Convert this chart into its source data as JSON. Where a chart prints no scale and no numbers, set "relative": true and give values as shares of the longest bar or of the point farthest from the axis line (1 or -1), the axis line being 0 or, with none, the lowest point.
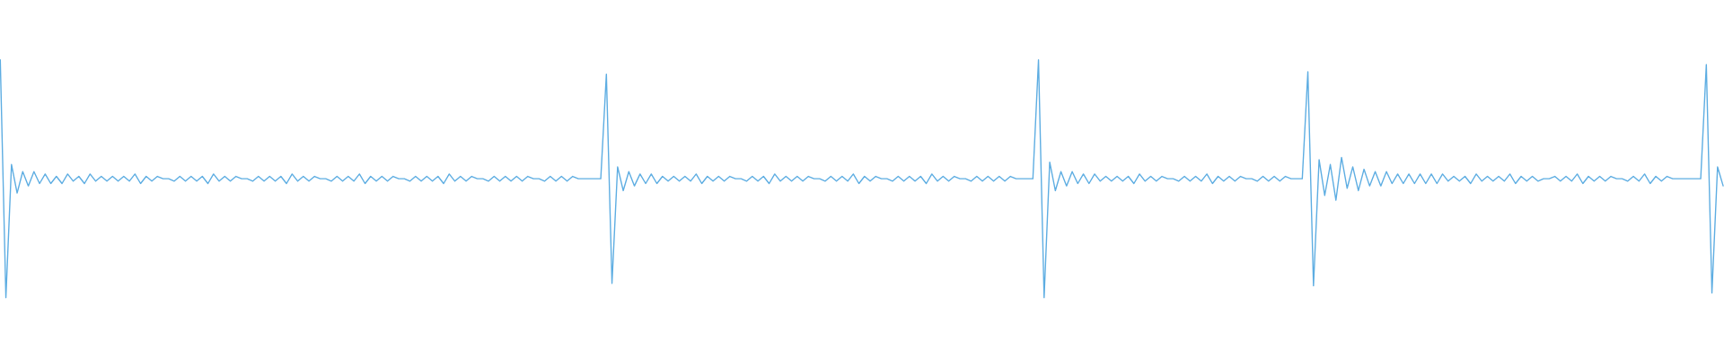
{
  "chart_data": {
    "type": "line",
    "relative": true,
    "categories": [
      null,
      null,
      null,
      null,
      null,
      null,
      null,
      null,
      null,
      null,
      null,
      null,
      null,
      null,
      null,
      null,
      null,
      null,
      null,
      null,
      null,
      null,
      null,
      null,
      null,
      null,
      null,
      null,
      null,
      null,
      null,
      null,
      null,
      null,
      null,
      null,
      null,
      null,
      null,
      null,
      null,
      null,
      null,
      null,
      null,
      null,
      null,
      null,
      null,
      null,
      null,
      null,
      null,
      null,
      null,
      null,
      null,
      null,
      null,
      null,
      null,
      null,
      null,
      null,
      null,
      null,
      null,
      null,
      null,
      null,
      null,
      null,
      null,
      null,
      null,
      null,
      null,
      null,
      null,
      null,
      null,
      null,
      null,
      null,
      null,
      null,
      null,
      null,
      null,
      null,
      null,
      null,
      null,
      null,
      null,
      null,
      null,
      null,
      null,
      null,
      null,
      null,
      null,
      null,
      null,
      null,
      null,
      null,
      null,
      null,
      null,
      null,
      null,
      null,
      null,
      null,
      null,
      null,
      null,
      null,
      null,
      null,
      null,
      null,
      null,
      null,
      null,
      null,
      null,
      null,
      null,
      null,
      null,
      null,
      null,
      null,
      null,
      null,
      null,
      null,
      null,
      null,
      null,
      null,
      null,
      null,
      null,
      null,
      null,
      null,
      null,
      null,
      null,
      null,
      null,
      null,
      null,
      null,
      null,
      null,
      null,
      null,
      null,
      null,
      null,
      null,
      null,
      null,
      null,
      null,
      null,
      null,
      null,
      null,
      null,
      null,
      null,
      null,
      null,
      null,
      null,
      null,
      null,
      null,
      null,
      null,
      null,
      null,
      null,
      null,
      null,
      null,
      null,
      null,
      null,
      null,
      null,
      null,
      null,
      null,
      null,
      null,
      null,
      null,
      null,
      null,
      null,
      null,
      null,
      null,
      null,
      null,
      null,
      null,
      null,
      null,
      null,
      null,
      null,
      null,
      null,
      null,
      null,
      null,
      null,
      null,
      null,
      null,
      null,
      null,
      null,
      null,
      null,
      null,
      null,
      null,
      null,
      null,
      null,
      null,
      null,
      null,
      null,
      null,
      null,
      null,
      null,
      null,
      null,
      null,
      null,
      null,
      null,
      null,
      null,
      null,
      null,
      null,
      null,
      null,
      null,
      null,
      null,
      null,
      null,
      null,
      null,
      null,
      null,
      null,
      null,
      null,
      null,
      null,
      null,
      null,
      null,
      null,
      null,
      null,
      null,
      null,
      null,
      null,
      null,
      null,
      null,
      null,
      null,
      null,
      null,
      null,
      null,
      null,
      null,
      null,
      null,
      null,
      null,
      null,
      null,
      null,
      null,
      null,
      null,
      null,
      null,
      null
    ],
    "series": [
      {
        "color": "#5dade2",
        "values": [
          1.0,
          0.0,
          0.56,
          0.44,
          0.53,
          0.47,
          0.53,
          0.48,
          0.52,
          0.48,
          0.51,
          0.48,
          0.52,
          0.49,
          0.51,
          0.48,
          0.52,
          0.49,
          0.51,
          0.49,
          0.51,
          0.49,
          0.51,
          0.49,
          0.52,
          0.48,
          0.51,
          0.49,
          0.51,
          0.5,
          0.5,
          0.49,
          0.51,
          0.49,
          0.51,
          0.49,
          0.51,
          0.48,
          0.52,
          0.49,
          0.51,
          0.49,
          0.51,
          0.5,
          0.5,
          0.49,
          0.51,
          0.49,
          0.51,
          0.49,
          0.51,
          0.48,
          0.52,
          0.49,
          0.51,
          0.49,
          0.51,
          0.5,
          0.5,
          0.49,
          0.51,
          0.49,
          0.51,
          0.49,
          0.52,
          0.48,
          0.51,
          0.49,
          0.51,
          0.49,
          0.51,
          0.5,
          0.5,
          0.49,
          0.51,
          0.49,
          0.51,
          0.49,
          0.51,
          0.48,
          0.52,
          0.49,
          0.51,
          0.49,
          0.51,
          0.5,
          0.5,
          0.49,
          0.51,
          0.49,
          0.51,
          0.49,
          0.51,
          0.49,
          0.51,
          0.5,
          0.5,
          0.49,
          0.51,
          0.49,
          0.51,
          0.49,
          0.51,
          0.5,
          0.5,
          0.5,
          0.5,
          0.5,
          0.94,
          0.06,
          0.55,
          0.45,
          0.53,
          0.47,
          0.52,
          0.48,
          0.52,
          0.48,
          0.51,
          0.49,
          0.51,
          0.49,
          0.51,
          0.49,
          0.52,
          0.48,
          0.51,
          0.49,
          0.51,
          0.49,
          0.51,
          0.5,
          0.5,
          0.49,
          0.51,
          0.49,
          0.51,
          0.48,
          0.52,
          0.49,
          0.51,
          0.49,
          0.51,
          0.49,
          0.51,
          0.5,
          0.5,
          0.49,
          0.51,
          0.49,
          0.51,
          0.49,
          0.52,
          0.48,
          0.51,
          0.49,
          0.51,
          0.5,
          0.5,
          0.49,
          0.51,
          0.49,
          0.51,
          0.49,
          0.51,
          0.48,
          0.52,
          0.49,
          0.51,
          0.49,
          0.51,
          0.5,
          0.5,
          0.49,
          0.51,
          0.49,
          0.51,
          0.49,
          0.51,
          0.49,
          0.51,
          0.5,
          0.5,
          0.5,
          0.5,
          1.0,
          0.0,
          0.57,
          0.45,
          0.53,
          0.47,
          0.53,
          0.48,
          0.52,
          0.48,
          0.52,
          0.49,
          0.51,
          0.49,
          0.51,
          0.49,
          0.51,
          0.48,
          0.52,
          0.49,
          0.51,
          0.49,
          0.51,
          0.5,
          0.5,
          0.49,
          0.51,
          0.49,
          0.51,
          0.49,
          0.52,
          0.48,
          0.51,
          0.49,
          0.51,
          0.49,
          0.51,
          0.5,
          0.5,
          0.49,
          0.51,
          0.49,
          0.51,
          0.49,
          0.51,
          0.5,
          0.5,
          0.5,
          0.95,
          0.05,
          0.58,
          0.43,
          0.56,
          0.41,
          0.59,
          0.46,
          0.55,
          0.45,
          0.54,
          0.47,
          0.53,
          0.47,
          0.53,
          0.48,
          0.52,
          0.48,
          0.52,
          0.48,
          0.52,
          0.48,
          0.52,
          0.48,
          0.52,
          0.49,
          0.51,
          0.49,
          0.51,
          0.48,
          0.52,
          0.49,
          0.51,
          0.49,
          0.51,
          0.49,
          0.52,
          0.48,
          0.51,
          0.49,
          0.51,
          0.49,
          0.5,
          0.5,
          0.51,
          0.49,
          0.51,
          0.49,
          0.52,
          0.48,
          0.51,
          0.49,
          0.51,
          0.49,
          0.51,
          0.5,
          0.5,
          0.49,
          0.51,
          0.49,
          0.52,
          0.48,
          0.51,
          0.49,
          0.51,
          0.5,
          0.5,
          0.5,
          0.5,
          0.5,
          0.5,
          0.98,
          0.02,
          0.55,
          0.47
        ]
      }
    ]
  }
}
